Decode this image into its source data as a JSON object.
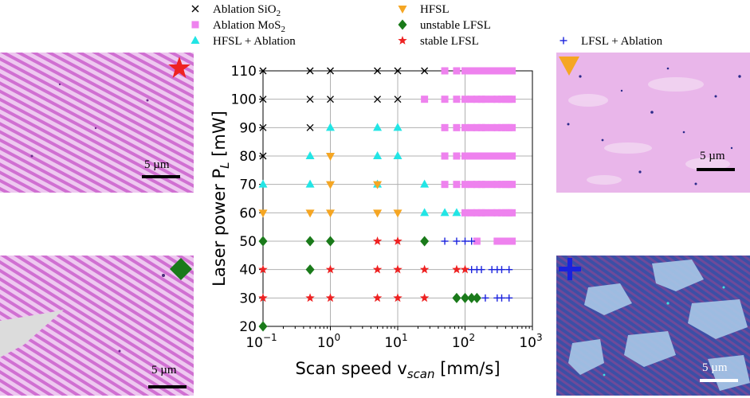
{
  "legend": {
    "items": [
      {
        "key": "abl_sio2",
        "label": "Ablation SiO",
        "sub": "2",
        "marker": "x",
        "color": "#000000"
      },
      {
        "key": "hfsl",
        "label": "HFSL",
        "marker": "triangle-down",
        "color": "#f5a623"
      },
      {
        "key": "abl_mos2",
        "label": "Ablation MoS",
        "sub": "2",
        "marker": "square",
        "color": "#ee82ee"
      },
      {
        "key": "unstable_lfsl",
        "label": "unstable LFSL",
        "marker": "diamond",
        "color": "#1a7a1a"
      },
      {
        "key": "hfsl_abl",
        "label": "HFSL + Ablation",
        "marker": "triangle-up",
        "color": "#22e5e5"
      },
      {
        "key": "stable_lfsl",
        "label": "stable LFSL",
        "marker": "star",
        "color": "#ee2222"
      },
      {
        "key": "lfsl_abl",
        "label": "LFSL + Ablation",
        "marker": "plus",
        "color": "#1a22dd"
      }
    ]
  },
  "panels": {
    "top_left": {
      "scale_label": "5 µm",
      "badge": "star"
    },
    "bottom_left": {
      "scale_label": "5 µm",
      "badge": "diamond"
    },
    "top_right": {
      "scale_label": "5 µm",
      "badge": "triangle-down"
    },
    "bottom_right": {
      "scale_label": "5 µm",
      "badge": "plus"
    }
  },
  "colors": {
    "grid": "#b0b0b0",
    "pink_bg": "#e6a8e8",
    "stripe": "#c860c8",
    "blue_bg": "#3a4fa0"
  },
  "chart_data": {
    "type": "scatter",
    "title": "",
    "xlabel": "Scan speed v",
    "xlabel_sub": "scan",
    "xlabel_unit": " [mm/s]",
    "ylabel": "Laser power P",
    "ylabel_sub": "L",
    "ylabel_unit": " [mW]",
    "xscale": "log",
    "xlim": [
      0.1,
      1000
    ],
    "ylim": [
      20,
      110
    ],
    "yticks": [
      20,
      30,
      40,
      50,
      60,
      70,
      80,
      90,
      100,
      110
    ],
    "xticks": [
      {
        "value": 0.1,
        "base": "10",
        "exp": "−1"
      },
      {
        "value": 1,
        "base": "10",
        "exp": "0"
      },
      {
        "value": 10,
        "base": "10",
        "exp": "1"
      },
      {
        "value": 100,
        "base": "10",
        "exp": "2"
      },
      {
        "value": 1000,
        "base": "10",
        "exp": "3"
      }
    ],
    "grid": true,
    "series": [
      {
        "key": "abl_sio2",
        "points": [
          [
            0.1,
            110
          ],
          [
            0.1,
            100
          ],
          [
            0.1,
            90
          ],
          [
            0.1,
            80
          ],
          [
            0.5,
            110
          ],
          [
            0.5,
            100
          ],
          [
            0.5,
            90
          ],
          [
            1,
            110
          ],
          [
            1,
            100
          ],
          [
            5,
            110
          ],
          [
            5,
            100
          ],
          [
            10,
            110
          ],
          [
            10,
            100
          ],
          [
            25,
            110
          ]
        ]
      },
      {
        "key": "abl_mos2",
        "points": [
          [
            50,
            110
          ],
          [
            75,
            110
          ],
          [
            100,
            110
          ],
          [
            125,
            110
          ],
          [
            150,
            110
          ],
          [
            175,
            110
          ],
          [
            200,
            110
          ],
          [
            250,
            110
          ],
          [
            300,
            110
          ],
          [
            350,
            110
          ],
          [
            400,
            110
          ],
          [
            450,
            110
          ],
          [
            500,
            110
          ],
          [
            25,
            100
          ],
          [
            50,
            100
          ],
          [
            75,
            100
          ],
          [
            100,
            100
          ],
          [
            125,
            100
          ],
          [
            150,
            100
          ],
          [
            175,
            100
          ],
          [
            200,
            100
          ],
          [
            250,
            100
          ],
          [
            300,
            100
          ],
          [
            350,
            100
          ],
          [
            400,
            100
          ],
          [
            450,
            100
          ],
          [
            500,
            100
          ],
          [
            50,
            90
          ],
          [
            75,
            90
          ],
          [
            100,
            90
          ],
          [
            125,
            90
          ],
          [
            150,
            90
          ],
          [
            175,
            90
          ],
          [
            200,
            90
          ],
          [
            250,
            90
          ],
          [
            300,
            90
          ],
          [
            350,
            90
          ],
          [
            400,
            90
          ],
          [
            450,
            90
          ],
          [
            500,
            90
          ],
          [
            50,
            80
          ],
          [
            75,
            80
          ],
          [
            100,
            80
          ],
          [
            125,
            80
          ],
          [
            150,
            80
          ],
          [
            175,
            80
          ],
          [
            200,
            80
          ],
          [
            250,
            80
          ],
          [
            300,
            80
          ],
          [
            350,
            80
          ],
          [
            400,
            80
          ],
          [
            450,
            80
          ],
          [
            500,
            80
          ],
          [
            50,
            70
          ],
          [
            75,
            70
          ],
          [
            100,
            70
          ],
          [
            125,
            70
          ],
          [
            150,
            70
          ],
          [
            175,
            70
          ],
          [
            200,
            70
          ],
          [
            250,
            70
          ],
          [
            300,
            70
          ],
          [
            350,
            70
          ],
          [
            400,
            70
          ],
          [
            450,
            70
          ],
          [
            500,
            70
          ],
          [
            100,
            60
          ],
          [
            125,
            60
          ],
          [
            150,
            60
          ],
          [
            175,
            60
          ],
          [
            200,
            60
          ],
          [
            250,
            60
          ],
          [
            300,
            60
          ],
          [
            350,
            60
          ],
          [
            400,
            60
          ],
          [
            450,
            60
          ],
          [
            500,
            60
          ],
          [
            150,
            50
          ],
          [
            300,
            50
          ],
          [
            350,
            50
          ],
          [
            400,
            50
          ],
          [
            450,
            50
          ],
          [
            500,
            50
          ]
        ]
      },
      {
        "key": "hfsl_abl",
        "points": [
          [
            1,
            90
          ],
          [
            5,
            90
          ],
          [
            10,
            90
          ],
          [
            0.5,
            80
          ],
          [
            5,
            80
          ],
          [
            10,
            80
          ],
          [
            0.1,
            70
          ],
          [
            0.5,
            70
          ],
          [
            5,
            70
          ],
          [
            25,
            70
          ],
          [
            25,
            60
          ],
          [
            50,
            60
          ],
          [
            75,
            60
          ]
        ]
      },
      {
        "key": "hfsl",
        "points": [
          [
            1,
            80
          ],
          [
            1,
            70
          ],
          [
            0.1,
            60
          ],
          [
            0.5,
            60
          ],
          [
            1,
            60
          ],
          [
            5,
            60
          ],
          [
            10,
            60
          ],
          [
            5,
            70
          ]
        ]
      },
      {
        "key": "unstable_lfsl",
        "points": [
          [
            0.1,
            50
          ],
          [
            0.5,
            50
          ],
          [
            1,
            50
          ],
          [
            25,
            50
          ],
          [
            0.5,
            40
          ],
          [
            0.1,
            20
          ],
          [
            75,
            30
          ],
          [
            100,
            30
          ],
          [
            125,
            30
          ],
          [
            150,
            30
          ]
        ]
      },
      {
        "key": "stable_lfsl",
        "points": [
          [
            5,
            50
          ],
          [
            10,
            50
          ],
          [
            0.1,
            40
          ],
          [
            1,
            40
          ],
          [
            5,
            40
          ],
          [
            10,
            40
          ],
          [
            25,
            40
          ],
          [
            75,
            40
          ],
          [
            100,
            40
          ],
          [
            0.1,
            30
          ],
          [
            0.5,
            30
          ],
          [
            1,
            30
          ],
          [
            5,
            30
          ],
          [
            10,
            30
          ],
          [
            25,
            30
          ]
        ]
      },
      {
        "key": "lfsl_abl",
        "points": [
          [
            50,
            50
          ],
          [
            75,
            50
          ],
          [
            100,
            50
          ],
          [
            125,
            50
          ],
          [
            125,
            40
          ],
          [
            150,
            40
          ],
          [
            175,
            40
          ],
          [
            250,
            40
          ],
          [
            300,
            40
          ],
          [
            350,
            40
          ],
          [
            450,
            40
          ],
          [
            200,
            30
          ],
          [
            300,
            30
          ],
          [
            350,
            30
          ],
          [
            450,
            30
          ]
        ]
      }
    ]
  }
}
